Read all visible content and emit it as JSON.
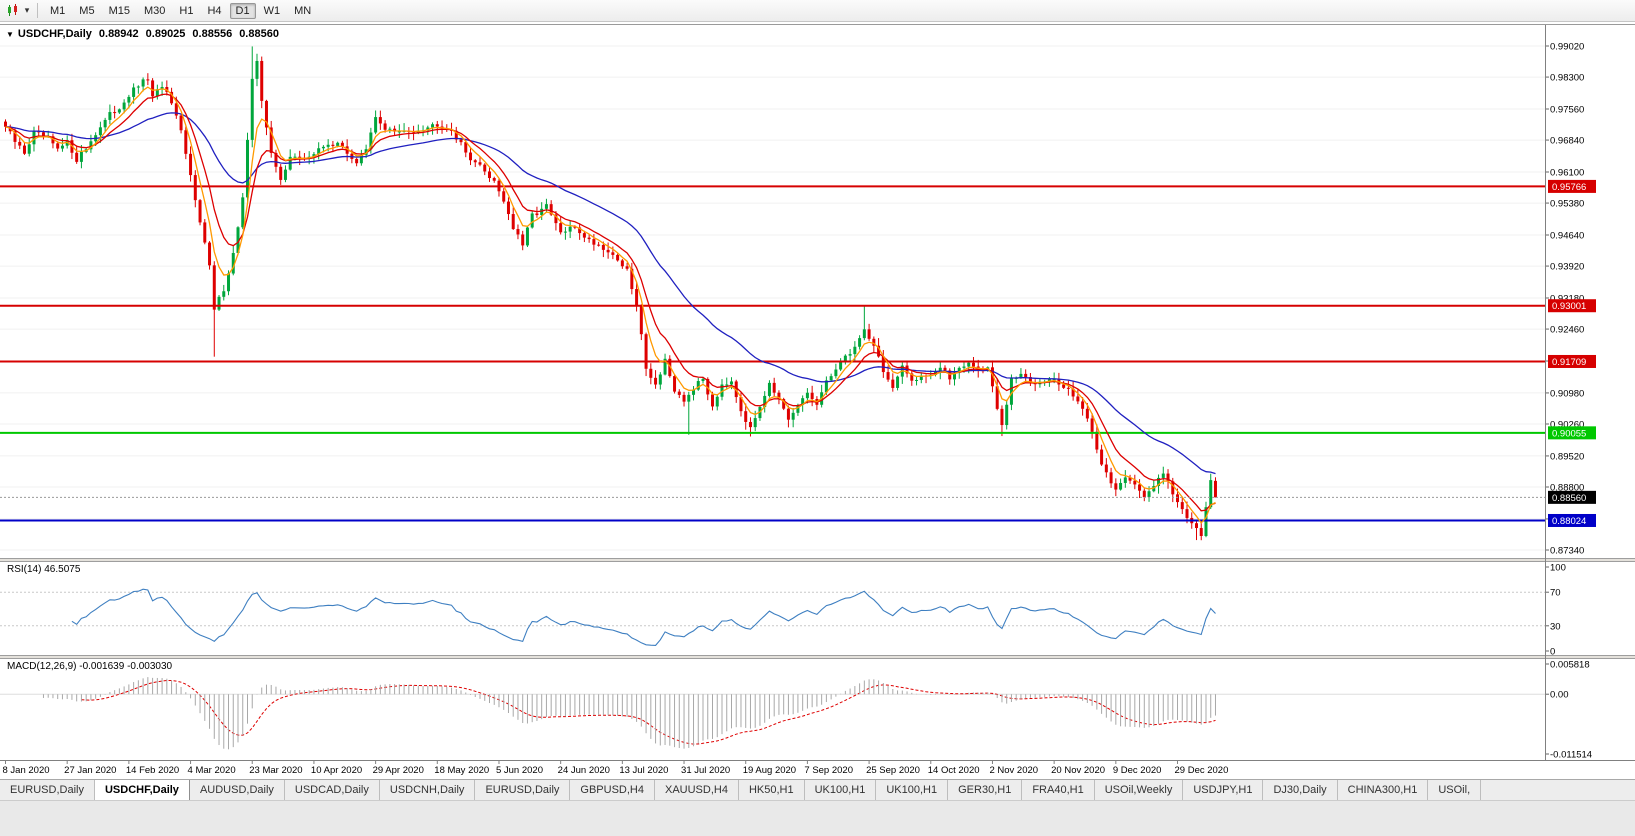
{
  "toolbar": {
    "dropdown_glyph": "▾",
    "timeframes": [
      "M1",
      "M5",
      "M15",
      "M30",
      "H1",
      "H4",
      "D1",
      "W1",
      "MN"
    ],
    "active_timeframe": "D1"
  },
  "chart_header": {
    "collapse_icon": "▼",
    "symbol": "USDCHF,Daily",
    "open": "0.88942",
    "high": "0.89025",
    "low": "0.88556",
    "close": "0.88560"
  },
  "colors": {
    "up": "#00a63c",
    "down": "#de0000",
    "ma_fast": "#ff9900",
    "ma_mid": "#dd0000",
    "ma_slow": "#2020c0",
    "level_red": "#d60000",
    "level_green": "#00c800",
    "level_blue": "#0000c8",
    "rsi_line": "#3e7fc1",
    "macd_hist": "#a8a8a8",
    "macd_signal": "#de0000",
    "grid": "#f0f0f0",
    "axis_text": "#000000",
    "current_price_bg": "#000000"
  },
  "levels": [
    {
      "price": 0.95766,
      "label": "0.95766",
      "color": "#d60000"
    },
    {
      "price": 0.93001,
      "label": "0.93001",
      "color": "#d60000"
    },
    {
      "price": 0.91709,
      "label": "0.91709",
      "color": "#d60000"
    },
    {
      "price": 0.90055,
      "label": "0.90055",
      "color": "#00c800"
    },
    {
      "price": 0.88024,
      "label": "0.88024",
      "color": "#0000c8"
    }
  ],
  "current_price": {
    "price": 0.8856,
    "label": "0.88560"
  },
  "price_axis_labels": [
    "0.99020",
    "0.98300",
    "0.97560",
    "0.96840",
    "0.96100",
    "0.95380",
    "0.94640",
    "0.93920",
    "0.93180",
    "0.92460",
    "0.91720",
    "0.90980",
    "0.90260",
    "0.89520",
    "0.88800",
    "0.88060",
    "0.87340"
  ],
  "date_axis_labels": [
    "8 Jan 2020",
    "27 Jan 2020",
    "14 Feb 2020",
    "4 Mar 2020",
    "23 Mar 2020",
    "10 Apr 2020",
    "29 Apr 2020",
    "18 May 2020",
    "5 Jun 2020",
    "24 Jun 2020",
    "13 Jul 2020",
    "31 Jul 2020",
    "19 Aug 2020",
    "7 Sep 2020",
    "25 Sep 2020",
    "14 Oct 2020",
    "2 Nov 2020",
    "20 Nov 2020",
    "9 Dec 2020",
    "29 Dec 2020"
  ],
  "rsi_panel": {
    "label": "RSI(14) 46.5075",
    "period": 14,
    "value": 46.5075,
    "axis_labels": [
      "100",
      "70",
      "30",
      "0"
    ],
    "axis_values": [
      100,
      70,
      30,
      0
    ],
    "guide_levels": [
      70,
      30
    ]
  },
  "macd_panel": {
    "label": "MACD(12,26,9) -0.001639 -0.003030",
    "fast": 12,
    "slow": 26,
    "signal": 9,
    "macd_value": -0.001639,
    "signal_value": -0.00303,
    "axis_labels": [
      "0.005818",
      "0.00",
      "-0.011514"
    ],
    "axis_values": [
      0.005818,
      0,
      -0.011514
    ]
  },
  "bottom_tabs": {
    "active_index": 1,
    "tabs": [
      "EURUSD,Daily",
      "USDCHF,Daily",
      "AUDUSD,Daily",
      "USDCAD,Daily",
      "USDCNH,Daily",
      "EURUSD,Daily",
      "GBPUSD,H4",
      "XAUUSD,H4",
      "HK50,H1",
      "UK100,H1",
      "UK100,H1",
      "GER30,H1",
      "FRA40,H1",
      "USOil,Weekly",
      "USDJPY,H1",
      "DJ30,Daily",
      "CHINA300,H1",
      "USOil,"
    ]
  },
  "chart_data": {
    "type": "candlestick",
    "symbol": "USDCHF",
    "timeframe": "Daily",
    "title": "USDCHF,Daily 0.88942 0.89025 0.88556 0.88560",
    "bars": 256,
    "x_range": [
      "8 Jan 2020",
      "6 Jan 2021"
    ],
    "y_range": [
      0.8734,
      0.9902
    ],
    "last_bar": {
      "open": 0.88942,
      "high": 0.89025,
      "low": 0.88556,
      "close": 0.8856
    },
    "horizontal_lines": [
      0.95766,
      0.93001,
      0.91709,
      0.90055,
      0.88024
    ],
    "moving_averages": [
      {
        "period": 34,
        "color": "#2020c0"
      },
      {
        "period": 10,
        "color": "#dd0000"
      },
      {
        "period": 5,
        "color": "#ff9900"
      }
    ],
    "indicators": [
      {
        "name": "RSI",
        "period": 14,
        "last": 46.5075
      },
      {
        "name": "MACD",
        "params": [
          12,
          26,
          9
        ],
        "last_macd": -0.001639,
        "last_signal": -0.00303
      }
    ],
    "close_keyframes": [
      [
        0,
        0.9715
      ],
      [
        2,
        0.968
      ],
      [
        4,
        0.9655
      ],
      [
        6,
        0.97
      ],
      [
        9,
        0.9686
      ],
      [
        11,
        0.966
      ],
      [
        13,
        0.9678
      ],
      [
        15,
        0.964
      ],
      [
        17,
        0.9665
      ],
      [
        19,
        0.97
      ],
      [
        22,
        0.9742
      ],
      [
        24,
        0.976
      ],
      [
        26,
        0.9788
      ],
      [
        28,
        0.981
      ],
      [
        30,
        0.9826
      ],
      [
        31,
        0.978
      ],
      [
        33,
        0.9812
      ],
      [
        35,
        0.9768
      ],
      [
        37,
        0.97
      ],
      [
        39,
        0.96
      ],
      [
        41,
        0.95
      ],
      [
        43,
        0.939
      ],
      [
        44,
        0.929
      ],
      [
        46,
        0.934
      ],
      [
        48,
        0.942
      ],
      [
        50,
        0.955
      ],
      [
        51,
        0.968
      ],
      [
        52,
        0.982
      ],
      [
        53,
        0.987
      ],
      [
        54,
        0.978
      ],
      [
        56,
        0.965
      ],
      [
        58,
        0.959
      ],
      [
        60,
        0.965
      ],
      [
        62,
        0.9638
      ],
      [
        65,
        0.9652
      ],
      [
        68,
        0.9678
      ],
      [
        71,
        0.9668
      ],
      [
        74,
        0.9632
      ],
      [
        76,
        0.966
      ],
      [
        78,
        0.9735
      ],
      [
        80,
        0.9712
      ],
      [
        83,
        0.97
      ],
      [
        86,
        0.9708
      ],
      [
        89,
        0.9715
      ],
      [
        91,
        0.9722
      ],
      [
        94,
        0.9708
      ],
      [
        97,
        0.9655
      ],
      [
        100,
        0.9622
      ],
      [
        103,
        0.959
      ],
      [
        105,
        0.9545
      ],
      [
        107,
        0.948
      ],
      [
        109,
        0.944
      ],
      [
        111,
        0.951
      ],
      [
        114,
        0.953
      ],
      [
        117,
        0.9468
      ],
      [
        120,
        0.9482
      ],
      [
        123,
        0.9452
      ],
      [
        126,
        0.9435
      ],
      [
        129,
        0.9408
      ],
      [
        131,
        0.938
      ],
      [
        133,
        0.93
      ],
      [
        135,
        0.916
      ],
      [
        137,
        0.9115
      ],
      [
        139,
        0.9178
      ],
      [
        141,
        0.9095
      ],
      [
        143,
        0.9078
      ],
      [
        145,
        0.911
      ],
      [
        147,
        0.913
      ],
      [
        149,
        0.9068
      ],
      [
        151,
        0.912
      ],
      [
        153,
        0.9128
      ],
      [
        155,
        0.906
      ],
      [
        157,
        0.9012
      ],
      [
        159,
        0.907
      ],
      [
        161,
        0.9125
      ],
      [
        163,
        0.908
      ],
      [
        165,
        0.903
      ],
      [
        167,
        0.9068
      ],
      [
        169,
        0.9098
      ],
      [
        171,
        0.9072
      ],
      [
        173,
        0.912
      ],
      [
        175,
        0.9158
      ],
      [
        177,
        0.918
      ],
      [
        179,
        0.9205
      ],
      [
        181,
        0.9245
      ],
      [
        183,
        0.921
      ],
      [
        185,
        0.915
      ],
      [
        187,
        0.9108
      ],
      [
        189,
        0.9155
      ],
      [
        191,
        0.9128
      ],
      [
        193,
        0.914
      ],
      [
        195,
        0.9142
      ],
      [
        197,
        0.9155
      ],
      [
        199,
        0.9132
      ],
      [
        201,
        0.916
      ],
      [
        203,
        0.9168
      ],
      [
        205,
        0.915
      ],
      [
        207,
        0.9158
      ],
      [
        209,
        0.906
      ],
      [
        210,
        0.902
      ],
      [
        212,
        0.9125
      ],
      [
        214,
        0.9142
      ],
      [
        216,
        0.912
      ],
      [
        218,
        0.9128
      ],
      [
        220,
        0.9135
      ],
      [
        222,
        0.9118
      ],
      [
        224,
        0.9102
      ],
      [
        226,
        0.9082
      ],
      [
        228,
        0.904
      ],
      [
        230,
        0.8962
      ],
      [
        232,
        0.8912
      ],
      [
        234,
        0.8872
      ],
      [
        236,
        0.8908
      ],
      [
        238,
        0.889
      ],
      [
        240,
        0.8852
      ],
      [
        242,
        0.8882
      ],
      [
        244,
        0.8918
      ],
      [
        245,
        0.8898
      ],
      [
        246,
        0.8868
      ],
      [
        247,
        0.8842
      ],
      [
        249,
        0.8812
      ],
      [
        251,
        0.8788
      ],
      [
        252,
        0.8772
      ],
      [
        253,
        0.8832
      ],
      [
        254,
        0.889
      ],
      [
        255,
        0.8856
      ]
    ],
    "wick_events": [
      {
        "bar": 30,
        "high": 0.9839
      },
      {
        "bar": 44,
        "low": 0.9182
      },
      {
        "bar": 52,
        "high": 0.9901
      },
      {
        "bar": 144,
        "low": 0.9001
      },
      {
        "bar": 157,
        "low": 0.8997
      },
      {
        "bar": 181,
        "high": 0.93
      },
      {
        "bar": 210,
        "low": 0.8998
      },
      {
        "bar": 251,
        "low": 0.8757
      }
    ]
  }
}
